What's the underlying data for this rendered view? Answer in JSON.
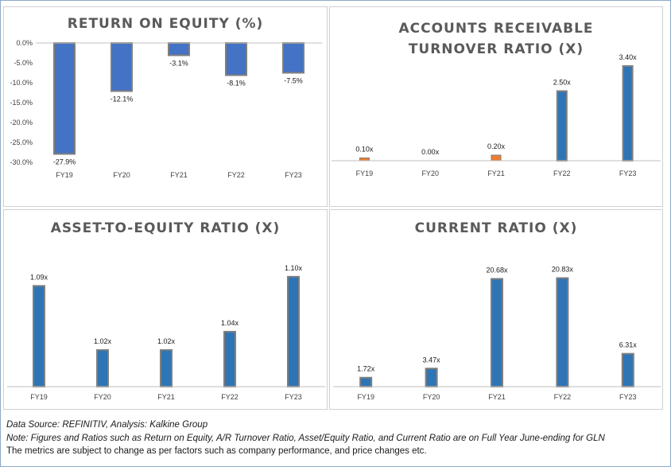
{
  "footer": {
    "source": "Data Source: REFINITIV, Analysis: Kalkine Group",
    "note": "Note: Figures and Ratios such as Return on Equity, A/R Turnover Ratio, Asset/Equity Ratio, and Current Ratio are on Full Year June-ending for GLN",
    "disclaimer": "The metrics are subject to change as per factors such as company performance, and price changes etc."
  },
  "colors": {
    "roe_bar": "#4472c4",
    "bar": "#2e75b6",
    "bar_border": "#7f7f7f",
    "small_bar": "#ed7d31",
    "axis": "#bfbfbf",
    "grid": "#d9d9d9",
    "text": "#404040"
  },
  "chart_data": [
    {
      "id": "roe",
      "type": "bar",
      "title": "RETURN ON EQUITY (%)",
      "categories": [
        "FY19",
        "FY20",
        "FY21",
        "FY22",
        "FY23"
      ],
      "values": [
        -27.9,
        -12.1,
        -3.1,
        -8.1,
        -7.5
      ],
      "labels": [
        "-27.9%",
        "-12.1%",
        "-3.1%",
        "-8.1%",
        "-7.5%"
      ],
      "ylim": [
        -30,
        0
      ],
      "yticks": [
        0,
        -5,
        -10,
        -15,
        -20,
        -25,
        -30
      ],
      "yticklabels": [
        "0.0%",
        "-5.0%",
        "-10.0%",
        "-15.0%",
        "-20.0%",
        "-25.0%",
        "-30.0%"
      ],
      "grid": false,
      "xlabel": "",
      "ylabel": ""
    },
    {
      "id": "ar",
      "type": "bar",
      "title": "ACCOUNTS RECEIVABLE TURNOVER RATIO (X)",
      "title_lines": [
        "ACCOUNTS RECEIVABLE",
        "TURNOVER RATIO (X)"
      ],
      "categories": [
        "FY19",
        "FY20",
        "FY21",
        "FY22",
        "FY23"
      ],
      "values": [
        0.1,
        0.0,
        0.2,
        2.5,
        3.4
      ],
      "labels": [
        "0.10x",
        "0.00x",
        "0.20x",
        "2.50x",
        "3.40x"
      ],
      "ylim": [
        0,
        3.8
      ],
      "grid": false,
      "xlabel": "",
      "ylabel": ""
    },
    {
      "id": "ae",
      "type": "bar",
      "title": "ASSET-TO-EQUITY RATIO (X)",
      "categories": [
        "FY19",
        "FY20",
        "FY21",
        "FY22",
        "FY23"
      ],
      "values": [
        1.09,
        1.02,
        1.02,
        1.04,
        1.1
      ],
      "labels": [
        "1.09x",
        "1.02x",
        "1.02x",
        "1.04x",
        "1.10x"
      ],
      "ylim": [
        0.98,
        1.112
      ],
      "grid": false,
      "xlabel": "",
      "ylabel": ""
    },
    {
      "id": "cr",
      "type": "bar",
      "title": "CURRENT RATIO (X)",
      "categories": [
        "FY19",
        "FY20",
        "FY21",
        "FY22",
        "FY23"
      ],
      "values": [
        1.72,
        3.47,
        20.68,
        20.83,
        6.31
      ],
      "labels": [
        "1.72x",
        "3.47x",
        "20.68x",
        "20.83x",
        "6.31x"
      ],
      "ylim": [
        0,
        23.2
      ],
      "grid": false,
      "xlabel": "",
      "ylabel": ""
    }
  ]
}
